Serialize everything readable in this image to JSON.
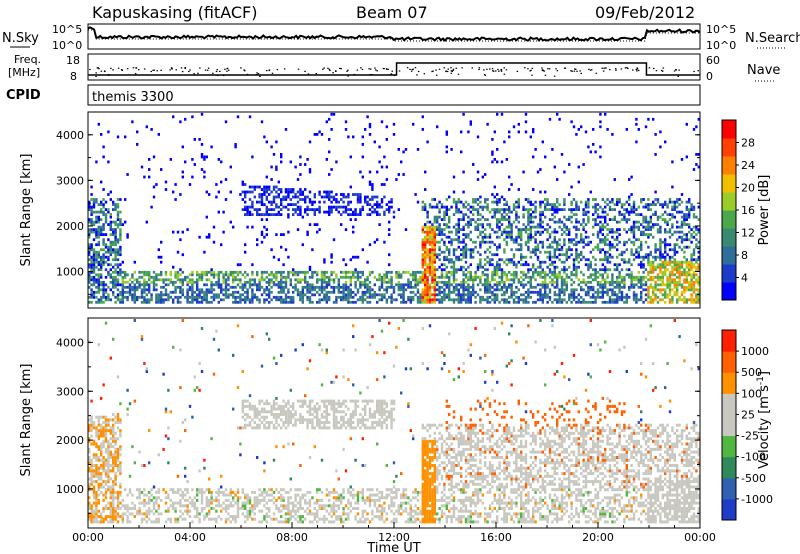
{
  "header": {
    "station": "Kapuskasing (fitACF)",
    "beam": "Beam 07",
    "date": "09/Feb/2012"
  },
  "aux_panels": {
    "nsky_label": "N.Sky",
    "nsearch_label": "N.Search",
    "noise_ticks": [
      "10^5",
      "10^0"
    ],
    "freq_label_line1": "Freq.",
    "freq_label_line2": "[MHz]",
    "freq_ticks": [
      "18",
      "8"
    ],
    "nave_label": "Nave",
    "nave_ticks": [
      "60",
      "0"
    ],
    "cpid_label": "CPID",
    "cpid_value": "themis 3300"
  },
  "chart_data": [
    {
      "type": "heatmap",
      "name": "power",
      "ylabel": "Slant Range [km]",
      "y_ticks": [
        1000,
        2000,
        3000,
        4000
      ],
      "ylim": [
        200,
        4500
      ],
      "xlim": [
        0,
        24
      ],
      "colorbar_label": "Power [dB]",
      "colorbar_ticks": [
        28,
        24,
        20,
        16,
        12,
        8,
        4
      ],
      "colorbar_colors": [
        "#0000ff",
        "#1c3cc8",
        "#2e6e9a",
        "#3a8a70",
        "#4aa84a",
        "#9acc2a",
        "#f0c000",
        "#ff8000",
        "#ff4000",
        "#ff0000"
      ]
    },
    {
      "type": "heatmap",
      "name": "velocity",
      "ylabel": "Slant Range [km]",
      "y_ticks": [
        1000,
        2000,
        3000,
        4000
      ],
      "ylim": [
        200,
        4500
      ],
      "xlim": [
        0,
        24
      ],
      "xlabel": "Time UT",
      "x_ticks": [
        "00:00",
        "04:00",
        "08:00",
        "12:00",
        "16:00",
        "20:00",
        "00:00"
      ],
      "colorbar_label": "Velocity [m s",
      "colorbar_label_sup": "-1",
      "colorbar_label_end": "]",
      "colorbar_ticks": [
        1000,
        500,
        100,
        25,
        -25,
        -100,
        -500,
        -1000
      ],
      "colorbar_colors": [
        "#1e3cc8",
        "#3060b0",
        "#2e8a5a",
        "#50b840",
        "#c8c8c0",
        "#c8c8c0",
        "#ff9000",
        "#ff6000",
        "#ff2000"
      ]
    }
  ]
}
